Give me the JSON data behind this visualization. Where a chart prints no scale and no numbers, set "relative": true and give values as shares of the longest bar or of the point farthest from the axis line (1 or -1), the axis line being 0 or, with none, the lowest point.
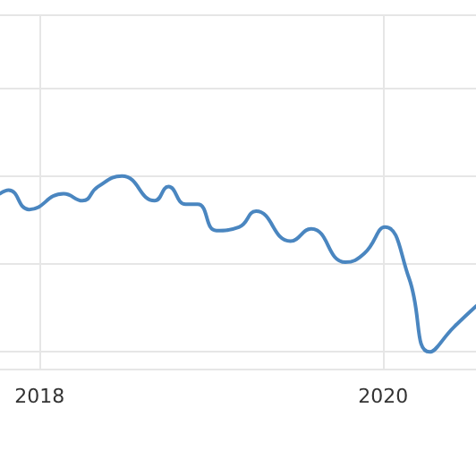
{
  "chart_data": {
    "type": "line",
    "relative": true,
    "x": [
      2017.77,
      2017.82,
      2017.94,
      2018.14,
      2018.25,
      2018.34,
      2018.48,
      2018.67,
      2018.75,
      2018.85,
      2018.92,
      2019.03,
      2019.16,
      2019.26,
      2019.46,
      2019.58,
      2019.78,
      2019.89,
      2020.01,
      2020.15,
      2020.27,
      2020.41,
      2020.54
    ],
    "series": [
      {
        "color": "#4a86c0",
        "values": [
          0.9,
          0.92,
          0.81,
          0.9,
          0.86,
          0.94,
          1,
          0.86,
          0.94,
          0.84,
          0.84,
          0.69,
          0.71,
          0.8,
          0.63,
          0.7,
          0.51,
          0.56,
          0.71,
          0.42,
          0,
          0.14,
          0.26
        ]
      }
    ],
    "xlim": [
      2017.77,
      2020.54
    ],
    "xticks": [
      2018,
      2020
    ],
    "grid": true,
    "marker": "none",
    "line_style": "solid"
  }
}
